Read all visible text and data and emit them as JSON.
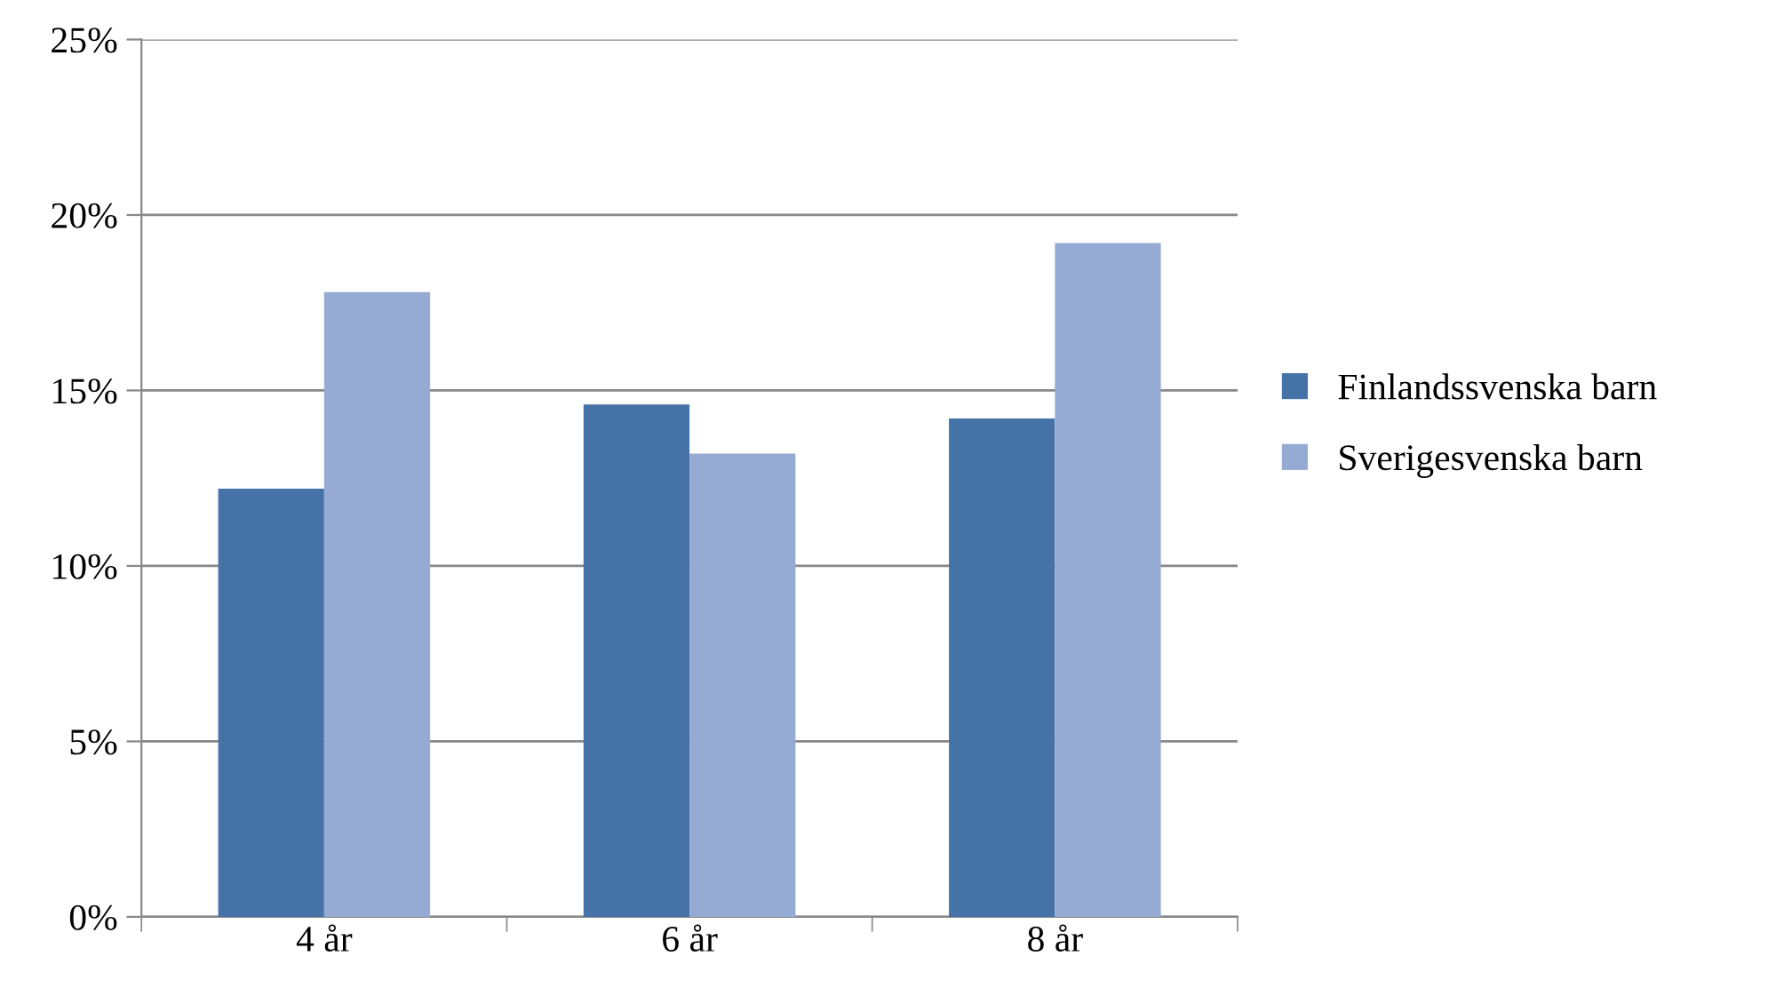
{
  "chart_data": {
    "type": "bar",
    "categories": [
      "4 år",
      "6 år",
      "8 år"
    ],
    "series": [
      {
        "name": "Finlandssvenska barn",
        "color": "#4572a7",
        "values": [
          12.2,
          14.6,
          14.2
        ]
      },
      {
        "name": "Sverigesvenska barn",
        "color": "#95abd3",
        "values": [
          17.8,
          13.2,
          19.2
        ]
      }
    ],
    "ylim": [
      0,
      25
    ],
    "yticks": [
      {
        "value": 0,
        "label": "0%"
      },
      {
        "value": 5,
        "label": "5%"
      },
      {
        "value": 10,
        "label": "10%"
      },
      {
        "value": 15,
        "label": "15%"
      },
      {
        "value": 20,
        "label": "20%"
      },
      {
        "value": 25,
        "label": "25%"
      }
    ],
    "grid": "y",
    "legend": "right"
  }
}
